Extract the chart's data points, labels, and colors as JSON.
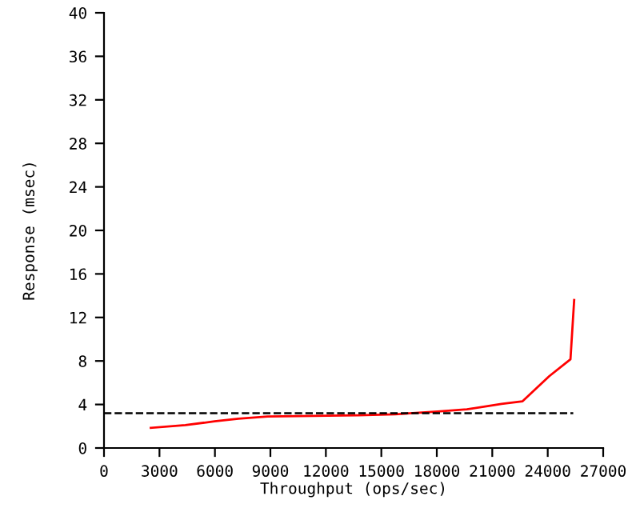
{
  "chart_data": {
    "type": "line",
    "xlabel": "Throughput (ops/sec)",
    "ylabel": "Response (msec)",
    "xlim": [
      0,
      27000
    ],
    "ylim": [
      0,
      40
    ],
    "xticks": [
      0,
      3000,
      6000,
      9000,
      12000,
      15000,
      18000,
      21000,
      24000,
      27000
    ],
    "yticks": [
      0,
      4,
      8,
      12,
      16,
      20,
      24,
      28,
      32,
      36,
      40
    ],
    "series": [
      {
        "color": "#ff0000",
        "x": [
          2530,
          4400,
          5980,
          7270,
          8850,
          13740,
          15750,
          18050,
          19630,
          21500,
          22640,
          24080,
          25230,
          25430
        ],
        "values": [
          1.85,
          2.1,
          2.45,
          2.7,
          2.9,
          3.0,
          3.1,
          3.35,
          3.55,
          4.05,
          4.3,
          6.6,
          8.15,
          13.6
        ]
      }
    ],
    "ref_lines": [
      {
        "axis": "y",
        "value": 3.2,
        "color": "#000000",
        "line_style": "dashed"
      }
    ],
    "grid": false,
    "legend": false,
    "marker": "none",
    "line_style": "solid"
  }
}
